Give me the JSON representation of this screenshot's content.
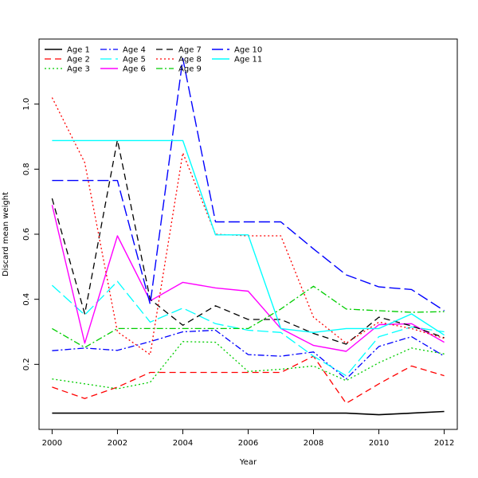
{
  "chart_data": {
    "type": "line",
    "title": "",
    "xlabel": "Year",
    "ylabel": "Discard mean weight",
    "xlim": [
      1999.6,
      2012.4
    ],
    "ylim": [
      0,
      1.2
    ],
    "x_ticks": [
      2000,
      2002,
      2004,
      2006,
      2008,
      2010,
      2012
    ],
    "y_ticks": [
      0.2,
      0.4,
      0.6,
      0.8,
      1.0
    ],
    "y_tick_labels": [
      "0.2",
      "0.4",
      "0.6",
      "0.8",
      "1.0"
    ],
    "legend_position": "top-left",
    "grid": false,
    "x": [
      2000,
      2001,
      2002,
      2003,
      2004,
      2005,
      2006,
      2007,
      2008,
      2009,
      2010,
      2011,
      2012
    ],
    "series": [
      {
        "name": "Age 1",
        "color": "#000000",
        "dash": "solid",
        "width": 1.6,
        "values": [
          0.05,
          0.05,
          0.05,
          0.05,
          0.05,
          0.05,
          0.05,
          0.05,
          0.05,
          0.05,
          0.045,
          0.05,
          0.055
        ]
      },
      {
        "name": "Age 2",
        "color": "#ff0000",
        "dash": "8,5",
        "width": 1.3,
        "values": [
          0.13,
          0.095,
          0.13,
          0.175,
          0.175,
          0.175,
          0.175,
          0.175,
          0.225,
          0.08,
          0.14,
          0.195,
          0.165
        ]
      },
      {
        "name": "Age 3",
        "color": "#00cd00",
        "dash": "2,3",
        "width": 1.3,
        "values": [
          0.155,
          0.14,
          0.125,
          0.145,
          0.27,
          0.268,
          0.178,
          0.185,
          0.195,
          0.15,
          0.205,
          0.25,
          0.232
        ]
      },
      {
        "name": "Age 4",
        "color": "#0000ff",
        "dash": "8,3,2,3",
        "width": 1.3,
        "values": [
          0.242,
          0.25,
          0.243,
          0.27,
          0.3,
          0.305,
          0.23,
          0.225,
          0.238,
          0.155,
          0.255,
          0.285,
          0.225
        ]
      },
      {
        "name": "Age 5",
        "color": "#00ffff",
        "dash": "14,5",
        "width": 1.3,
        "values": [
          0.443,
          0.352,
          0.455,
          0.33,
          0.373,
          0.325,
          0.305,
          0.298,
          0.225,
          0.165,
          0.285,
          0.315,
          0.3
        ]
      },
      {
        "name": "Age 6",
        "color": "#ff00ff",
        "dash": "solid",
        "width": 1.4,
        "values": [
          0.69,
          0.265,
          0.595,
          0.395,
          0.452,
          0.435,
          0.425,
          0.31,
          0.258,
          0.24,
          0.322,
          0.325,
          0.268
        ]
      },
      {
        "name": "Age 7",
        "color": "#000000",
        "dash": "8,5",
        "width": 1.3,
        "values": [
          0.71,
          0.355,
          0.89,
          0.4,
          0.32,
          0.38,
          0.338,
          0.338,
          0.295,
          0.262,
          0.345,
          0.318,
          0.282
        ]
      },
      {
        "name": "Age 8",
        "color": "#ff0000",
        "dash": "2,3",
        "width": 1.3,
        "values": [
          1.02,
          0.82,
          0.3,
          0.23,
          0.85,
          0.6,
          0.595,
          0.595,
          0.345,
          0.265,
          0.33,
          0.31,
          0.28
        ]
      },
      {
        "name": "Age 9",
        "color": "#00cd00",
        "dash": "8,3,2,3",
        "width": 1.3,
        "values": [
          0.31,
          0.252,
          0.31,
          0.31,
          0.31,
          0.31,
          0.31,
          0.37,
          0.44,
          0.37,
          0.365,
          0.36,
          0.362
        ]
      },
      {
        "name": "Age 10",
        "color": "#0000ff",
        "dash": "14,5",
        "width": 1.4,
        "values": [
          0.765,
          0.765,
          0.765,
          0.385,
          1.14,
          0.638,
          0.638,
          0.638,
          0.555,
          0.475,
          0.438,
          0.43,
          0.365
        ]
      },
      {
        "name": "Age 11",
        "color": "#00ffff",
        "dash": "solid",
        "width": 1.4,
        "values": [
          0.888,
          0.888,
          0.888,
          0.888,
          0.888,
          0.598,
          0.598,
          0.31,
          0.298,
          0.31,
          0.31,
          0.355,
          0.29
        ]
      }
    ]
  }
}
